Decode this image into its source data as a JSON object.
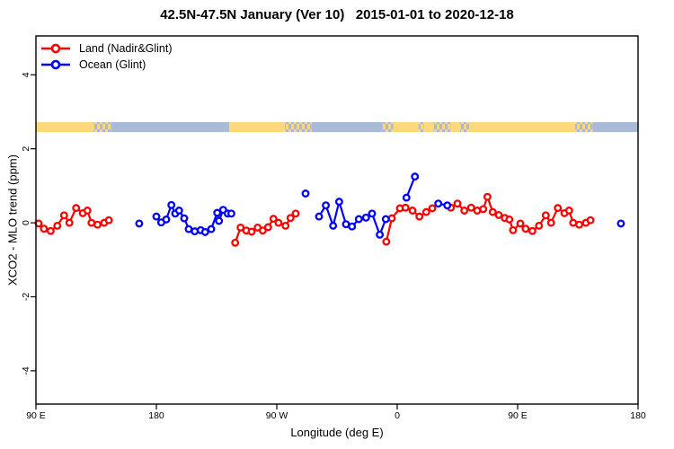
{
  "chart_data": {
    "type": "scatter",
    "title": "42.5N-47.5N January (Ver 10)   2015-01-01 to 2020-12-18",
    "x_axis": {
      "label": "Longitude (deg E)",
      "range": [
        90,
        540
      ],
      "ticks": [
        {
          "pos": 90,
          "label": "90 E"
        },
        {
          "pos": 180,
          "label": "180"
        },
        {
          "pos": 270,
          "label": "90 W"
        },
        {
          "pos": 360,
          "label": "0"
        },
        {
          "pos": 450,
          "label": "90 E"
        },
        {
          "pos": 540,
          "label": "180"
        }
      ],
      "wrap_note": "longitudes 90E-180E are plotted at both ends of the axis"
    },
    "y_axis": {
      "label": "XCO2 - MLO trend (ppm)",
      "range": [
        -4.9,
        5.05
      ],
      "ticks": [
        {
          "pos": -4,
          "label": "-4"
        },
        {
          "pos": -2,
          "label": "-2"
        },
        {
          "pos": 0,
          "label": "0"
        },
        {
          "pos": 2,
          "label": "2"
        },
        {
          "pos": 4,
          "label": "4"
        }
      ]
    },
    "connect_gap_deg": 8.5,
    "map_strip": {
      "value_band": [
        2.45,
        2.72
      ],
      "land_color": "#fdd87e",
      "ocean_color": "#a9bad7",
      "segments": [
        {
          "from": -180,
          "to": -125.5,
          "type": "ocean"
        },
        {
          "from": -125.5,
          "to": -84,
          "type": "land"
        },
        {
          "from": -84,
          "to": -64,
          "type": "mixed"
        },
        {
          "from": -64,
          "to": -11,
          "type": "ocean"
        },
        {
          "from": -11,
          "to": -3,
          "type": "mixed"
        },
        {
          "from": -3,
          "to": 16,
          "type": "land"
        },
        {
          "from": 16,
          "to": 20,
          "type": "mixed"
        },
        {
          "from": 20,
          "to": 27,
          "type": "land"
        },
        {
          "from": 27,
          "to": 40,
          "type": "mixed"
        },
        {
          "from": 40,
          "to": 47,
          "type": "land"
        },
        {
          "from": 47,
          "to": 54,
          "type": "mixed"
        },
        {
          "from": 54,
          "to": 133,
          "type": "land"
        },
        {
          "from": 133,
          "to": 146,
          "type": "mixed"
        },
        {
          "from": 146,
          "to": 180,
          "type": "ocean"
        }
      ]
    },
    "series": [
      {
        "name": "Land (Nadir&Glint)",
        "color": "#ff0000",
        "marker": "open-circle",
        "points": [
          [
            -121.1,
            -0.54
          ],
          [
            -117.1,
            -0.13
          ],
          [
            -112.8,
            -0.21
          ],
          [
            -108.8,
            -0.24
          ],
          [
            -104.3,
            -0.13
          ],
          [
            -100.5,
            -0.21
          ],
          [
            -96.5,
            -0.12
          ],
          [
            -92.5,
            0.11
          ],
          [
            -88.7,
            0.0
          ],
          [
            -83.5,
            -0.08
          ],
          [
            -79.7,
            0.13
          ],
          [
            -75.9,
            0.25
          ],
          [
            -8.1,
            -0.51
          ],
          [
            -4.0,
            0.12
          ],
          [
            2.0,
            0.39
          ],
          [
            6.2,
            0.41
          ],
          [
            11.4,
            0.33
          ],
          [
            16.6,
            0.17
          ],
          [
            21.7,
            0.29
          ],
          [
            26.2,
            0.39
          ],
          [
            40.1,
            0.41
          ],
          [
            45.0,
            0.52
          ],
          [
            50.2,
            0.33
          ],
          [
            55.3,
            0.41
          ],
          [
            59.8,
            0.33
          ],
          [
            64.3,
            0.37
          ],
          [
            67.4,
            0.7
          ],
          [
            71.4,
            0.29
          ],
          [
            75.9,
            0.21
          ],
          [
            80.4,
            0.13
          ],
          [
            83.8,
            0.09
          ],
          [
            86.6,
            -0.2
          ],
          [
            92.0,
            -0.02
          ],
          [
            96.0,
            -0.16
          ],
          [
            101.0,
            -0.22
          ],
          [
            106.0,
            -0.08
          ],
          [
            111.0,
            0.2
          ],
          [
            115.0,
            0.0
          ],
          [
            120.0,
            0.4
          ],
          [
            125.0,
            0.26
          ],
          [
            128.5,
            0.33
          ],
          [
            131.5,
            0.0
          ],
          [
            136.0,
            -0.05
          ],
          [
            141.0,
            0.0
          ],
          [
            144.5,
            0.07
          ]
        ]
      },
      {
        "name": "Ocean (Glint)",
        "color": "#0000ff",
        "marker": "open-circle",
        "points": [
          [
            -180.0,
            0.17
          ],
          [
            -176.4,
            0.01
          ],
          [
            -172.6,
            0.09
          ],
          [
            -168.8,
            0.48
          ],
          [
            -165.9,
            0.25
          ],
          [
            -163.0,
            0.33
          ],
          [
            -159.2,
            0.12
          ],
          [
            -155.8,
            -0.17
          ],
          [
            -151.3,
            -0.23
          ],
          [
            -146.9,
            -0.2
          ],
          [
            -143.5,
            -0.25
          ],
          [
            -139.0,
            -0.17
          ],
          [
            -134.5,
            0.27
          ],
          [
            -133.2,
            0.05
          ],
          [
            -130.1,
            0.35
          ],
          [
            -126.7,
            0.25
          ],
          [
            -124.0,
            0.25
          ],
          [
            -68.5,
            0.79
          ],
          [
            -58.4,
            0.17
          ],
          [
            -53.3,
            0.47
          ],
          [
            -47.9,
            -0.08
          ],
          [
            -43.4,
            0.57
          ],
          [
            -38.3,
            -0.04
          ],
          [
            -33.8,
            -0.1
          ],
          [
            -28.7,
            0.1
          ],
          [
            -23.3,
            0.14
          ],
          [
            -18.8,
            0.25
          ],
          [
            -13.0,
            -0.32
          ],
          [
            -8.5,
            0.1
          ],
          [
            6.9,
            0.68
          ],
          [
            13.2,
            1.25
          ],
          [
            30.7,
            0.52
          ],
          [
            37.4,
            0.47
          ],
          [
            167.2,
            -0.02
          ]
        ]
      }
    ]
  }
}
